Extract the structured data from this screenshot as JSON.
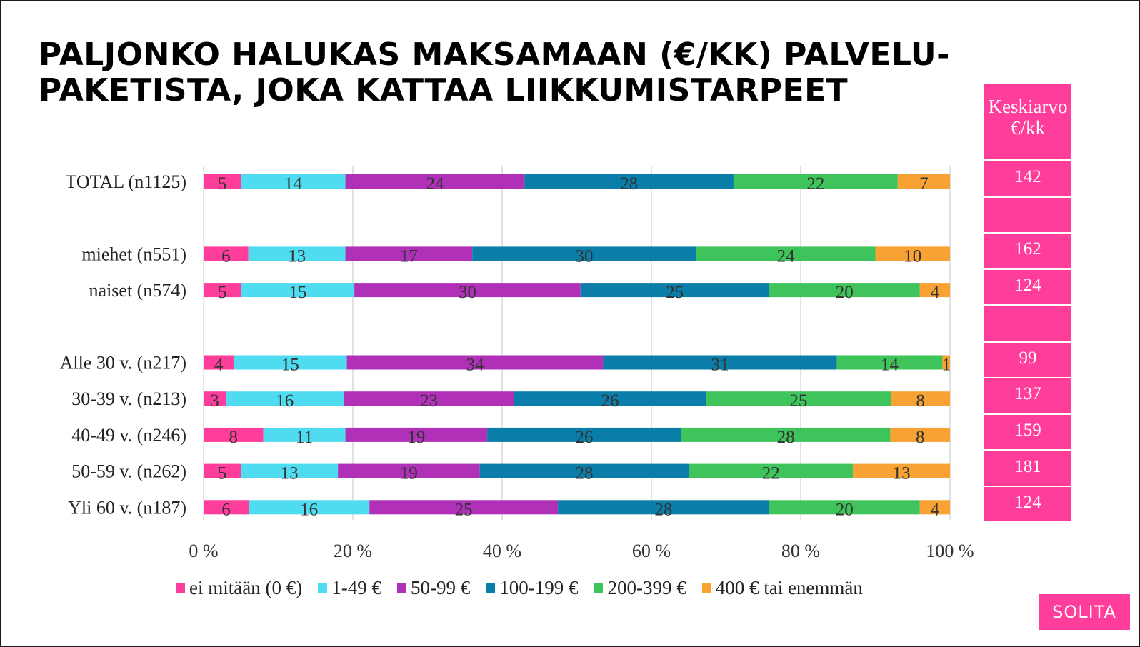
{
  "title_lines": [
    "PALJONKO HALUKAS MAKSAMAAN (€/KK) PALVELU-",
    "PAKETISTA, JOKA KATTAA LIIKKUMISTARPEET"
  ],
  "logo_text": "SOLITA",
  "colors": {
    "brand": "#ff3d9a",
    "series": [
      "#ff3d9a",
      "#4fdcf0",
      "#b030b8",
      "#0a7ea8",
      "#3ec45a",
      "#f7a233"
    ]
  },
  "chart_data": {
    "type": "bar",
    "orientation": "horizontal",
    "stacked": "percent",
    "categories": [
      "TOTAL (n1125)",
      "",
      "miehet (n551)",
      "naiset (n574)",
      "",
      "Alle 30 v. (n217)",
      "30-39 v. (n213)",
      "40-49 v. (n246)",
      "50-59 v. (n262)",
      "Yli 60 v. (n187)"
    ],
    "series": [
      {
        "name": "ei mitään (0 €)",
        "values": [
          5,
          null,
          6,
          5,
          null,
          4,
          3,
          8,
          5,
          6
        ]
      },
      {
        "name": "1-49 €",
        "values": [
          14,
          null,
          13,
          15,
          null,
          15,
          16,
          11,
          13,
          16
        ]
      },
      {
        "name": "50-99 €",
        "values": [
          24,
          null,
          17,
          30,
          null,
          34,
          23,
          19,
          19,
          25
        ]
      },
      {
        "name": "100-199 €",
        "values": [
          28,
          null,
          30,
          25,
          null,
          31,
          26,
          26,
          28,
          28
        ]
      },
      {
        "name": "200-399 €",
        "values": [
          22,
          null,
          24,
          20,
          null,
          14,
          25,
          28,
          22,
          20
        ]
      },
      {
        "name": "400 € tai enemmän",
        "values": [
          7,
          null,
          10,
          4,
          null,
          1,
          8,
          8,
          13,
          4
        ]
      }
    ],
    "x_ticks": [
      "0 %",
      "20 %",
      "40 %",
      "60 %",
      "80 %",
      "100 %"
    ],
    "xlim": [
      0,
      100
    ],
    "grid": true,
    "legend": "bottom",
    "side_table": {
      "header": "Keskiarvo €/kk",
      "header_lines": [
        "Keskiarvo",
        "€/kk"
      ],
      "values": [
        "142",
        "",
        "162",
        "124",
        "",
        "99",
        "137",
        "159",
        "181",
        "124"
      ]
    }
  }
}
